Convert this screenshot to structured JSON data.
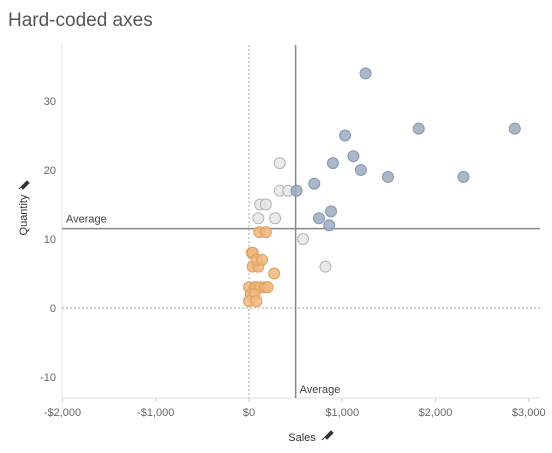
{
  "title": "Hard-coded axes",
  "chart_data": {
    "type": "scatter",
    "title": "Hard-coded axes",
    "xlabel": "Sales",
    "ylabel": "Quantity",
    "xlim": [
      -2000,
      3000
    ],
    "ylim": [
      -10,
      35
    ],
    "x_ticks": [
      {
        "value": -2000,
        "label": "-$2,000"
      },
      {
        "value": -1000,
        "label": "-$1,000"
      },
      {
        "value": 0,
        "label": "$0"
      },
      {
        "value": 1000,
        "label": "$1,000"
      },
      {
        "value": 2000,
        "label": "$2,000"
      },
      {
        "value": 3000,
        "label": "$3,000"
      }
    ],
    "y_ticks": [
      {
        "value": -10,
        "label": "-10"
      },
      {
        "value": 0,
        "label": "0"
      },
      {
        "value": 10,
        "label": "10"
      },
      {
        "value": 20,
        "label": "20"
      },
      {
        "value": 30,
        "label": "30"
      }
    ],
    "reference_lines": {
      "x_average": {
        "value": 500,
        "label": "Average"
      },
      "y_average": {
        "value": 11.5,
        "label": "Average"
      }
    },
    "colors": {
      "high_sales_high_qty": "#9aaac0",
      "low_sales_low_qty": "#f0b67a",
      "other": "#e6e6e6",
      "reference_line": "#888888"
    },
    "series": [
      {
        "group": "high_sales_high_qty",
        "points": [
          [
            1250,
            34
          ],
          [
            1820,
            26
          ],
          [
            2850,
            26
          ],
          [
            1030,
            25
          ],
          [
            1120,
            22
          ],
          [
            900,
            21
          ],
          [
            1200,
            20
          ],
          [
            2300,
            19
          ],
          [
            1490,
            19
          ],
          [
            700,
            18
          ],
          [
            510,
            17
          ],
          [
            750,
            13
          ],
          [
            880,
            14
          ],
          [
            860,
            12
          ]
        ]
      },
      {
        "group": "other",
        "points": [
          [
            330,
            21
          ],
          [
            330,
            17
          ],
          [
            420,
            17
          ],
          [
            120,
            15
          ],
          [
            180,
            15
          ],
          [
            100,
            13
          ],
          [
            280,
            13
          ],
          [
            580,
            10
          ],
          [
            820,
            6
          ]
        ]
      },
      {
        "group": "low_sales_low_qty",
        "points": [
          [
            30,
            8
          ],
          [
            40,
            8
          ],
          [
            110,
            11
          ],
          [
            180,
            11
          ],
          [
            40,
            6
          ],
          [
            100,
            6
          ],
          [
            80,
            7
          ],
          [
            140,
            7
          ],
          [
            270,
            5
          ],
          [
            0,
            3
          ],
          [
            60,
            3
          ],
          [
            80,
            3
          ],
          [
            120,
            3
          ],
          [
            170,
            3
          ],
          [
            200,
            3
          ],
          [
            20,
            2
          ],
          [
            60,
            2
          ],
          [
            0,
            1
          ],
          [
            80,
            1
          ]
        ]
      }
    ]
  }
}
